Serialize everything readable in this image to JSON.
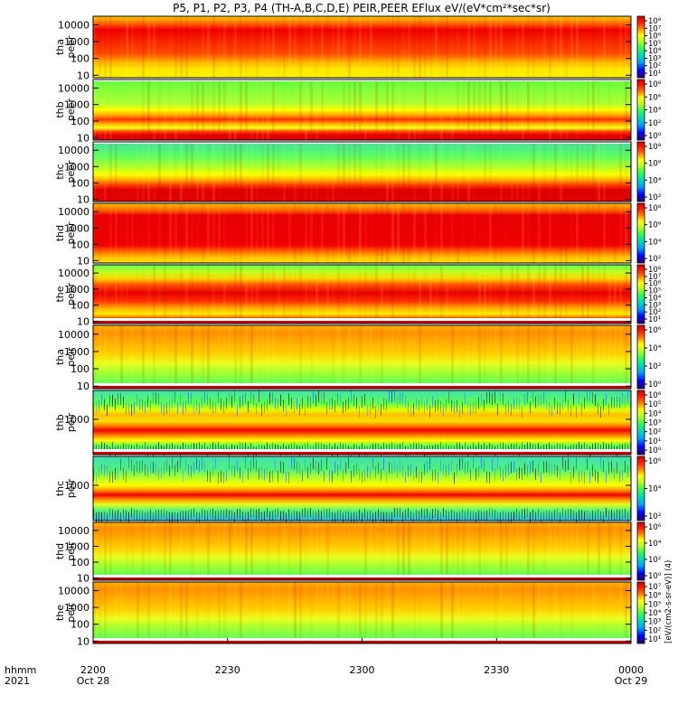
{
  "title": "P5, P1, P2, P3, P4 (TH-A,B,C,D,E) PEIR,PEER EFlux eV/(eV*cm²*sec*sr)",
  "colors": {
    "palette": [
      "#2a0060",
      "#0000ff",
      "#00a0ff",
      "#00e0b0",
      "#40ff40",
      "#c0ff20",
      "#ffff00",
      "#ffc000",
      "#ff8000",
      "#ff2000",
      "#d00000"
    ]
  },
  "chart_data": {
    "type": "heatmap",
    "x_axis": {
      "ticks": [
        "2200",
        "2230",
        "2300",
        "2330",
        "0000"
      ],
      "date_labels": [
        "Oct 28",
        "",
        "",
        "",
        "Oct 29"
      ],
      "row_labels": [
        "hhmm",
        "2021"
      ],
      "range": [
        "2021-10-28 22:00",
        "2021-10-29 00:00"
      ]
    },
    "colorbar_label": "[eV/(cm2-s-sr-eV)] (4)",
    "panels": [
      {
        "ylabel": [
          "tha",
          "peer"
        ],
        "yticks": [
          "10000",
          "1000",
          "100",
          "10"
        ],
        "log": true,
        "cticks": [
          "10⁸",
          "10⁷",
          "10⁶",
          "10⁵",
          "10⁴",
          "10³",
          "10²",
          "10¹"
        ],
        "pattern": "mid-red"
      },
      {
        "ylabel": [
          "thb",
          "peer"
        ],
        "yticks": [
          "10000",
          "1000",
          "100",
          "10"
        ],
        "log": true,
        "cticks": [
          "10⁸",
          "10⁶",
          "10⁴",
          "10²",
          "10⁰"
        ],
        "pattern": "green-top-red-bands"
      },
      {
        "ylabel": [
          "thc",
          "peer"
        ],
        "yticks": [
          "10000",
          "1000",
          "100",
          "10"
        ],
        "log": true,
        "cticks": [
          "10⁸",
          "10⁶",
          "10⁴",
          "10²"
        ],
        "pattern": "green-top-red-bottom"
      },
      {
        "ylabel": [
          "thd",
          "peer"
        ],
        "yticks": [
          "10000",
          "1000",
          "100",
          "10"
        ],
        "log": true,
        "cticks": [
          "10⁸",
          "10⁶",
          "10⁴",
          "10²"
        ],
        "pattern": "red-wide"
      },
      {
        "ylabel": [
          "the",
          "peer"
        ],
        "yticks": [
          "10000",
          "1000",
          "100",
          "10"
        ],
        "log": true,
        "cticks": [
          "10⁸",
          "10⁷",
          "10⁶",
          "10⁵",
          "10⁴",
          "10³",
          "10²",
          "10¹"
        ],
        "pattern": "green-top-red-mid"
      },
      {
        "ylabel": [
          "tha",
          "peir"
        ],
        "yticks": [
          "10000",
          "1000",
          "100",
          "10"
        ],
        "log": true,
        "cticks": [
          "10⁶",
          "10⁴",
          "10²",
          "10⁰"
        ],
        "pattern": "ion-orange"
      },
      {
        "ylabel": [
          "thb",
          "peir"
        ],
        "yticks": [
          "1000"
        ],
        "log": true,
        "cticks": [
          "10⁶",
          "10⁵",
          "10⁴",
          "10³",
          "10²",
          "10¹",
          "10⁰"
        ],
        "pattern": "ion-noisy"
      },
      {
        "ylabel": [
          "thc",
          "peir"
        ],
        "yticks": [
          "1000"
        ],
        "log": true,
        "cticks": [
          "10⁶",
          "10⁴",
          "10²"
        ],
        "pattern": "ion-green-noisy"
      },
      {
        "ylabel": [
          "thd",
          "peir"
        ],
        "yticks": [
          "10000",
          "1000",
          "100",
          "10"
        ],
        "log": true,
        "cticks": [
          "10⁶",
          "10⁴",
          "10²",
          "10⁰"
        ],
        "pattern": "ion-orange"
      },
      {
        "ylabel": [
          "the",
          "peir"
        ],
        "yticks": [
          "10000",
          "1000",
          "100",
          "10"
        ],
        "log": true,
        "cticks": [
          "10⁷",
          "10⁶",
          "10⁵",
          "10⁴",
          "10³",
          "10²",
          "10¹"
        ],
        "pattern": "ion-orange"
      }
    ]
  }
}
